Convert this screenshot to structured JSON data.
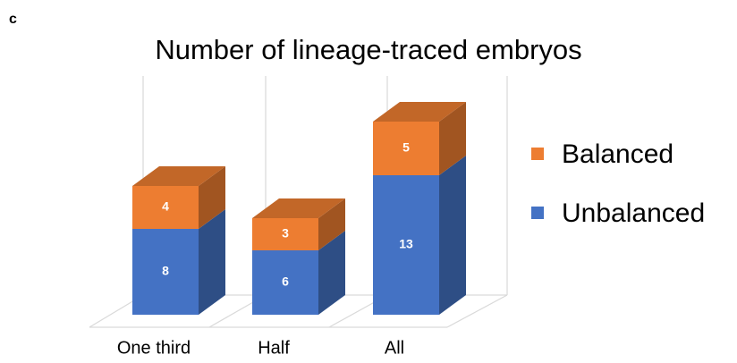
{
  "panel_label": "c",
  "chart_data": {
    "type": "bar3d_stacked",
    "title": "Number of lineage-traced embryos",
    "categories": [
      "One third",
      "Half",
      "All"
    ],
    "series": [
      {
        "name": "Unbalanced",
        "color": "#4472c4",
        "values": [
          8,
          6,
          13
        ]
      },
      {
        "name": "Balanced",
        "color": "#ed7d31",
        "values": [
          4,
          3,
          5
        ]
      }
    ],
    "ylim": [
      0,
      20
    ],
    "legend": "right"
  }
}
